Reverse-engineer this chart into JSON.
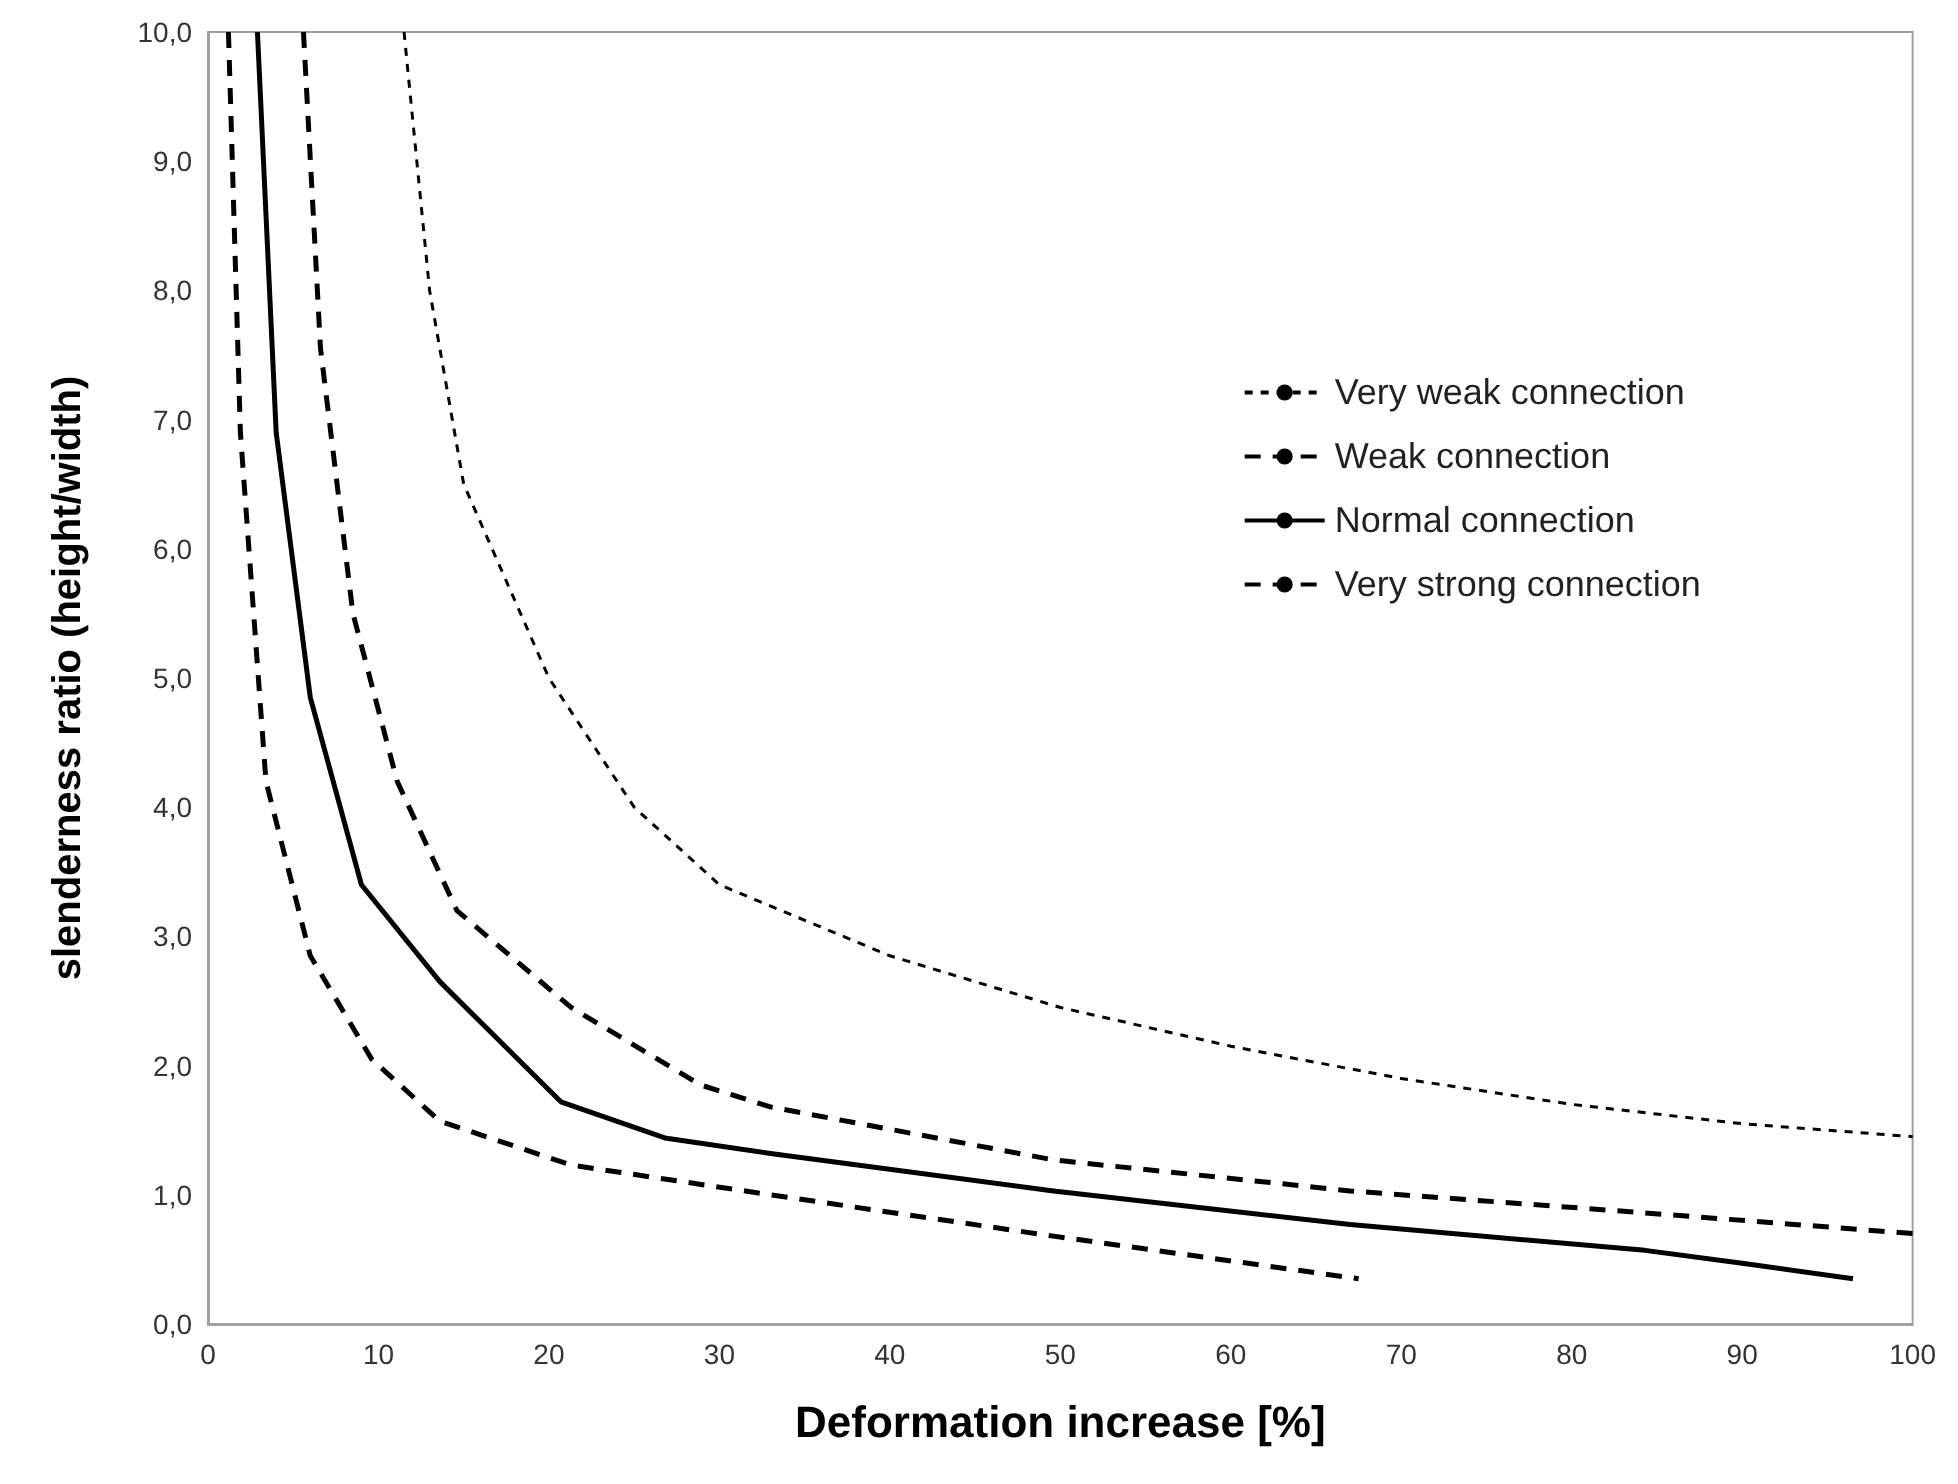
{
  "chart_data": {
    "type": "line",
    "xlabel": "Deformation increase [%]",
    "ylabel": "slenderness ratio (height/width)",
    "xlim": [
      0,
      100
    ],
    "xticks": [
      0,
      10,
      20,
      30,
      40,
      50,
      60,
      70,
      80,
      90,
      100
    ],
    "ylim": [
      0,
      10
    ],
    "yticks": [
      {
        "value": 0,
        "label": "0,0"
      },
      {
        "value": 1,
        "label": "1,0"
      },
      {
        "value": 2,
        "label": "2,0"
      },
      {
        "value": 3,
        "label": "3,0"
      },
      {
        "value": 4,
        "label": "4,0"
      },
      {
        "value": 5,
        "label": "5,0"
      },
      {
        "value": 6,
        "label": "6,0"
      },
      {
        "value": 7,
        "label": "7,0"
      },
      {
        "value": 8,
        "label": "8,0"
      },
      {
        "value": 9,
        "label": "9,0"
      },
      {
        "value": 10,
        "label": "10,0"
      }
    ],
    "grid": false,
    "legend": "top right",
    "marker": "none",
    "series": [
      {
        "name": "Very weak connection",
        "color": "#000000",
        "line_style": "dotted",
        "x": [
          11.5,
          13,
          15,
          20,
          25,
          30,
          40,
          50,
          60,
          70,
          80,
          90,
          100
        ],
        "values": [
          10,
          8.0,
          6.5,
          5.0,
          4.0,
          3.4,
          2.85,
          2.45,
          2.15,
          1.9,
          1.7,
          1.55,
          1.45
        ]
      },
      {
        "name": "Weak connection",
        "color": "#000000",
        "line_style": "dashed",
        "x": [
          5.6,
          6.6,
          8.5,
          11.1,
          14.6,
          21.3,
          28.9,
          33,
          49.6,
          67,
          84.3,
          100
        ],
        "values": [
          10,
          7.55,
          5.5,
          4.2,
          3.2,
          2.45,
          1.85,
          1.68,
          1.27,
          1.03,
          0.86,
          0.7
        ]
      },
      {
        "name": "Normal connection",
        "color": "#000000",
        "line_style": "solid",
        "x": [
          2.9,
          4.0,
          6.0,
          9.0,
          13.6,
          20.7,
          26.8,
          33,
          49.6,
          67,
          84.3,
          90,
          96.5
        ],
        "values": [
          10,
          6.9,
          4.85,
          3.4,
          2.65,
          1.72,
          1.44,
          1.32,
          1.03,
          0.77,
          0.57,
          0.47,
          0.35
        ]
      },
      {
        "name": "Very strong connection",
        "color": "#000000",
        "line_style": "dashed",
        "x": [
          1.2,
          1.9,
          3.4,
          6.0,
          9.6,
          13.6,
          21.3,
          33,
          49.6,
          67.5
        ],
        "values": [
          10,
          6.9,
          4.2,
          2.85,
          2.05,
          1.57,
          1.23,
          1.0,
          0.68,
          0.35
        ]
      }
    ]
  }
}
